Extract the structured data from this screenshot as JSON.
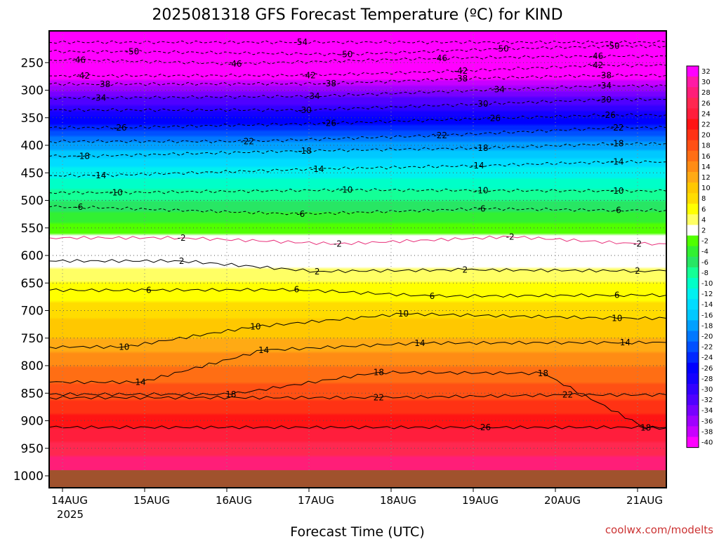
{
  "chart_data": {
    "type": "heatmap",
    "title": "2025081318 GFS Forecast Temperature (ºC) for KIND",
    "xlabel": "Forecast Time (UTC)",
    "x_ticks": [
      "14AUG",
      "15AUG",
      "16AUG",
      "17AUG",
      "18AUG",
      "19AUG",
      "20AUG",
      "21AUG"
    ],
    "x_year": "2025",
    "y_ticks": [
      "250",
      "300",
      "350",
      "400",
      "450",
      "500",
      "550",
      "600",
      "650",
      "700",
      "750",
      "800",
      "850",
      "900",
      "950",
      "1000"
    ],
    "y_values": [
      250,
      300,
      350,
      400,
      450,
      500,
      550,
      600,
      650,
      700,
      750,
      800,
      850,
      900,
      950,
      1000
    ],
    "ylim": [
      200,
      1000
    ],
    "colorbar_labels": [
      "32",
      "30",
      "28",
      "26",
      "24",
      "22",
      "20",
      "18",
      "16",
      "14",
      "12",
      "10",
      "8",
      "6",
      "4",
      "2",
      "-2",
      "-4",
      "-6",
      "-8",
      "-10",
      "-12",
      "-14",
      "-16",
      "-18",
      "-20",
      "-22",
      "-24",
      "-26",
      "-28",
      "-30",
      "-32",
      "-34",
      "-36",
      "-38",
      "-40"
    ],
    "colorbar_colors": [
      "#ff00ff",
      "#ff1aa5",
      "#ff1e78",
      "#ff2850",
      "#ff1e3c",
      "#ff1414",
      "#ff3214",
      "#ff5014",
      "#ff6e14",
      "#ff8c14",
      "#ffaa14",
      "#ffc800",
      "#ffdc00",
      "#ffff00",
      "#ffff64",
      "#ffffff",
      "#50ff00",
      "#32f032",
      "#28e664",
      "#14ff96",
      "#00ffc8",
      "#00f0f0",
      "#00dcff",
      "#00c8ff",
      "#00a0ff",
      "#0078ff",
      "#0050ff",
      "#0028ff",
      "#0000ff",
      "#1400ff",
      "#3200ff",
      "#5000ff",
      "#7800ff",
      "#a000ff",
      "#c800ff",
      "#ff00ff"
    ],
    "temperature_profile": [
      {
        "pressure": 200,
        "temp": -56
      },
      {
        "pressure": 250,
        "temp": -46
      },
      {
        "pressure": 300,
        "temp": -36
      },
      {
        "pressure": 350,
        "temp": -28
      },
      {
        "pressure": 400,
        "temp": -19
      },
      {
        "pressure": 450,
        "temp": -13
      },
      {
        "pressure": 500,
        "temp": -8
      },
      {
        "pressure": 550,
        "temp": -3
      },
      {
        "pressure": 600,
        "temp": 2
      },
      {
        "pressure": 650,
        "temp": 6
      },
      {
        "pressure": 700,
        "temp": 9
      },
      {
        "pressure": 750,
        "temp": 12
      },
      {
        "pressure": 800,
        "temp": 16
      },
      {
        "pressure": 850,
        "temp": 19
      },
      {
        "pressure": 900,
        "temp": 23
      },
      {
        "pressure": 950,
        "temp": 27
      },
      {
        "pressure": 975,
        "temp": 29
      }
    ],
    "contour_labels": [
      {
        "text": "-54",
        "day": 2.9,
        "pressure": 213
      },
      {
        "text": "-50",
        "day": 0.85,
        "pressure": 230
      },
      {
        "text": "-50",
        "day": 3.45,
        "pressure": 235
      },
      {
        "text": "-50",
        "day": 5.35,
        "pressure": 225
      },
      {
        "text": "-50",
        "day": 6.7,
        "pressure": 220
      },
      {
        "text": "-46",
        "day": 0.2,
        "pressure": 245
      },
      {
        "text": "-46",
        "day": 2.1,
        "pressure": 252
      },
      {
        "text": "-46",
        "day": 4.6,
        "pressure": 242
      },
      {
        "text": "-46",
        "day": 6.5,
        "pressure": 238
      },
      {
        "text": "-42",
        "day": 0.25,
        "pressure": 274
      },
      {
        "text": "-42",
        "day": 3.0,
        "pressure": 273
      },
      {
        "text": "-42",
        "day": 4.85,
        "pressure": 265
      },
      {
        "text": "-42",
        "day": 6.5,
        "pressure": 255
      },
      {
        "text": "-38",
        "day": 0.5,
        "pressure": 289
      },
      {
        "text": "-38",
        "day": 3.25,
        "pressure": 288
      },
      {
        "text": "-38",
        "day": 4.85,
        "pressure": 279
      },
      {
        "text": "-38",
        "day": 6.6,
        "pressure": 273
      },
      {
        "text": "-34",
        "day": 0.45,
        "pressure": 314
      },
      {
        "text": "-34",
        "day": 3.05,
        "pressure": 311
      },
      {
        "text": "-34",
        "day": 5.3,
        "pressure": 299
      },
      {
        "text": "-34",
        "day": 6.6,
        "pressure": 292
      },
      {
        "text": "-30",
        "day": 2.95,
        "pressure": 336
      },
      {
        "text": "-30",
        "day": 5.1,
        "pressure": 325
      },
      {
        "text": "-30",
        "day": 6.6,
        "pressure": 317
      },
      {
        "text": "-26",
        "day": 0.7,
        "pressure": 368
      },
      {
        "text": "-26",
        "day": 3.25,
        "pressure": 360
      },
      {
        "text": "-26",
        "day": 5.25,
        "pressure": 351
      },
      {
        "text": "-26",
        "day": 6.65,
        "pressure": 345
      },
      {
        "text": "-22",
        "day": 2.25,
        "pressure": 393
      },
      {
        "text": "-22",
        "day": 4.6,
        "pressure": 382
      },
      {
        "text": "-22",
        "day": 6.75,
        "pressure": 368
      },
      {
        "text": "-18",
        "day": 0.25,
        "pressure": 420
      },
      {
        "text": "-18",
        "day": 2.95,
        "pressure": 410
      },
      {
        "text": "-18",
        "day": 5.1,
        "pressure": 405
      },
      {
        "text": "-18",
        "day": 6.75,
        "pressure": 397
      },
      {
        "text": "-14",
        "day": 0.45,
        "pressure": 455
      },
      {
        "text": "-14",
        "day": 3.1,
        "pressure": 443
      },
      {
        "text": "-14",
        "day": 5.05,
        "pressure": 437
      },
      {
        "text": "-14",
        "day": 6.75,
        "pressure": 430
      },
      {
        "text": "-10",
        "day": 0.65,
        "pressure": 486
      },
      {
        "text": "-10",
        "day": 3.45,
        "pressure": 481
      },
      {
        "text": "-10",
        "day": 5.1,
        "pressure": 482
      },
      {
        "text": "-10",
        "day": 6.75,
        "pressure": 483
      },
      {
        "text": "-6",
        "day": 0.2,
        "pressure": 512
      },
      {
        "text": "-6",
        "day": 2.9,
        "pressure": 525
      },
      {
        "text": "-6",
        "day": 5.1,
        "pressure": 515
      },
      {
        "text": "-6",
        "day": 6.75,
        "pressure": 518
      },
      {
        "text": "-2",
        "day": 1.45,
        "pressure": 568
      },
      {
        "text": "-2",
        "day": 3.35,
        "pressure": 579
      },
      {
        "text": "-2",
        "day": 5.45,
        "pressure": 566
      },
      {
        "text": "-2",
        "day": 7.0,
        "pressure": 579
      },
      {
        "text": "2",
        "day": 1.45,
        "pressure": 610
      },
      {
        "text": "2",
        "day": 3.1,
        "pressure": 629
      },
      {
        "text": "2",
        "day": 4.9,
        "pressure": 626
      },
      {
        "text": "2",
        "day": 7.0,
        "pressure": 628
      },
      {
        "text": "6",
        "day": 1.05,
        "pressure": 663
      },
      {
        "text": "6",
        "day": 2.85,
        "pressure": 662
      },
      {
        "text": "6",
        "day": 4.5,
        "pressure": 674
      },
      {
        "text": "6",
        "day": 6.75,
        "pressure": 672
      },
      {
        "text": "10",
        "day": 0.75,
        "pressure": 766
      },
      {
        "text": "10",
        "day": 2.35,
        "pressure": 729
      },
      {
        "text": "10",
        "day": 4.15,
        "pressure": 706
      },
      {
        "text": "10",
        "day": 6.75,
        "pressure": 714
      },
      {
        "text": "14",
        "day": 0.95,
        "pressure": 830
      },
      {
        "text": "14",
        "day": 2.45,
        "pressure": 772
      },
      {
        "text": "14",
        "day": 4.35,
        "pressure": 759
      },
      {
        "text": "14",
        "day": 6.85,
        "pressure": 758
      },
      {
        "text": "18",
        "day": 2.05,
        "pressure": 852
      },
      {
        "text": "18",
        "day": 3.85,
        "pressure": 812
      },
      {
        "text": "18",
        "day": 5.85,
        "pressure": 814
      },
      {
        "text": "18",
        "day": 7.1,
        "pressure": 913
      },
      {
        "text": "22",
        "day": 3.85,
        "pressure": 858
      },
      {
        "text": "22",
        "day": 6.15,
        "pressure": 853
      },
      {
        "text": "26",
        "day": 5.15,
        "pressure": 912
      }
    ]
  }
}
